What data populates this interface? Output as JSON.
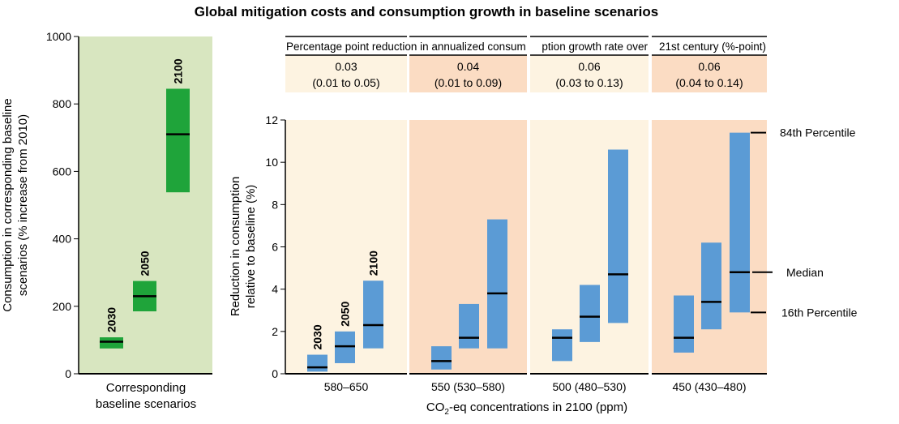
{
  "chart_data": [
    {
      "type": "bar",
      "title": "Global mitigation costs and consumption growth in baseline scenarios",
      "ylabel": "Consumption in corresponding baseline scenarios (% increase from 2010)",
      "ylabel_lines": [
        "Consumption in corresponding baseline",
        "scenarios (% increase from 2010)"
      ],
      "xlabel_lines": [
        "Corresponding",
        "baseline scenarios"
      ],
      "ylim": [
        0,
        1000
      ],
      "yticks": [
        "0",
        "200",
        "400",
        "600",
        "800",
        "1000"
      ],
      "bar_color": "#1fa43a",
      "panel_bg": "#d8e6c0",
      "series": [
        {
          "name": "2030",
          "low": 75,
          "median": 95,
          "high": 108
        },
        {
          "name": "2050",
          "low": 185,
          "median": 230,
          "high": 275
        },
        {
          "name": "2100",
          "low": 538,
          "median": 710,
          "high": 845
        }
      ]
    },
    {
      "type": "bar",
      "ylabel_lines": [
        "Reduction in consumption",
        "relative to baseline (%)"
      ],
      "xlabel_prefix": "CO",
      "xlabel_sub": "2",
      "xlabel_suffix": "-eq concentrations in 2100 (ppm)",
      "ylim": [
        0,
        12
      ],
      "yticks": [
        "0",
        "2",
        "4",
        "6",
        "8",
        "10",
        "12"
      ],
      "bar_color": "#5b9bd5",
      "header_label": "Percentage point reduction in annualized consumption growth rate over 21st century (%-point)",
      "header_segments": [
        "Percentage point reduction in annualized consum",
        "ption growth rate over",
        "21st century (%-point)"
      ],
      "year_labels": [
        "2030",
        "2050",
        "2100"
      ],
      "legend": {
        "p84": "84th Percentile",
        "median": "Median",
        "p16": "16th Percentile"
      },
      "groups": [
        {
          "category": "580–650",
          "growth_value": "0.03",
          "growth_range": "(0.01 to 0.05)",
          "bg": "#fdf3e1",
          "bars": [
            {
              "year": "2030",
              "low": 0.1,
              "median": 0.3,
              "high": 0.9
            },
            {
              "year": "2050",
              "low": 0.5,
              "median": 1.3,
              "high": 2.0
            },
            {
              "year": "2100",
              "low": 1.2,
              "median": 2.3,
              "high": 4.4
            }
          ]
        },
        {
          "category": "550 (530–580)",
          "growth_value": "0.04",
          "growth_range": "(0.01 to 0.09)",
          "bg": "#fbdcc3",
          "bars": [
            {
              "year": "2030",
              "low": 0.2,
              "median": 0.6,
              "high": 1.3
            },
            {
              "year": "2050",
              "low": 1.2,
              "median": 1.7,
              "high": 3.3
            },
            {
              "year": "2100",
              "low": 1.2,
              "median": 3.8,
              "high": 7.3
            }
          ]
        },
        {
          "category": "500 (480–530)",
          "growth_value": "0.06",
          "growth_range": "(0.03 to 0.13)",
          "bg": "#fdf3e1",
          "bars": [
            {
              "year": "2030",
              "low": 0.6,
              "median": 1.7,
              "high": 2.1
            },
            {
              "year": "2050",
              "low": 1.5,
              "median": 2.7,
              "high": 4.2
            },
            {
              "year": "2100",
              "low": 2.4,
              "median": 4.7,
              "high": 10.6
            }
          ]
        },
        {
          "category": "450 (430–480)",
          "growth_value": "0.06",
          "growth_range": "(0.04 to 0.14)",
          "bg": "#fbdcc3",
          "bars": [
            {
              "year": "2030",
              "low": 1.0,
              "median": 1.7,
              "high": 3.7
            },
            {
              "year": "2050",
              "low": 2.1,
              "median": 3.4,
              "high": 6.2
            },
            {
              "year": "2100",
              "low": 2.9,
              "median": 4.8,
              "high": 11.4
            }
          ]
        }
      ]
    }
  ]
}
